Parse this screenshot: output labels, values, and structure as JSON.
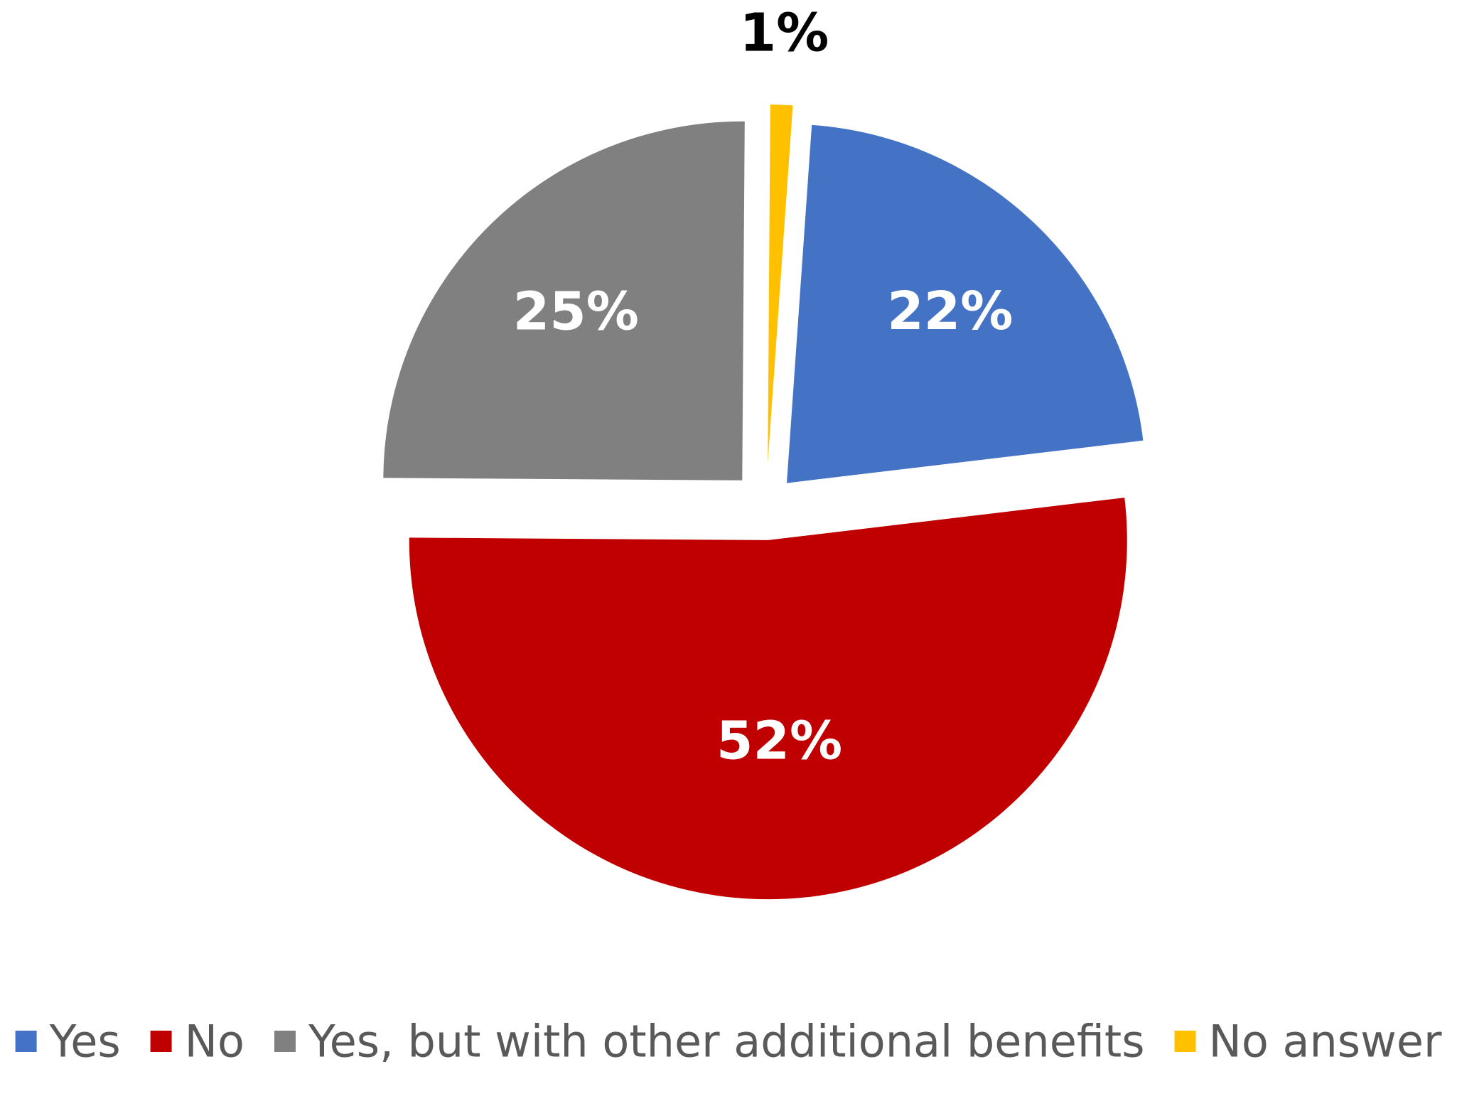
{
  "chart_data": {
    "type": "pie",
    "title": "",
    "legend_position": "bottom",
    "slices": [
      {
        "label": "Yes",
        "value": 22,
        "display": "22%",
        "color": "#4472C4",
        "label_color": "#FFFFFF"
      },
      {
        "label": "No",
        "value": 52,
        "display": "52%",
        "color": "#C00000",
        "label_color": "#FFFFFF"
      },
      {
        "label": "Yes, but with other additional benefits",
        "value": 25,
        "display": "25%",
        "color": "#808080",
        "label_color": "#FFFFFF"
      },
      {
        "label": "No answer",
        "value": 1,
        "display": "1%",
        "color": "#FFC000",
        "label_color": "#000000"
      }
    ],
    "legend": [
      "Yes",
      "No",
      "Yes, but with other additional benefits",
      "No answer"
    ]
  }
}
